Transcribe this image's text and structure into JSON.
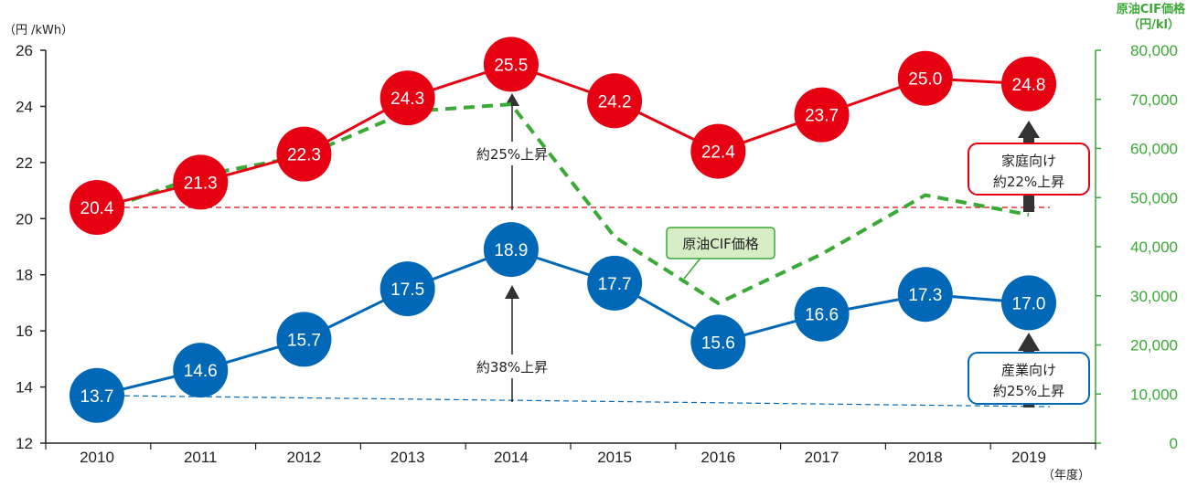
{
  "chart_data": {
    "type": "line",
    "categories": [
      "2010",
      "2011",
      "2012",
      "2013",
      "2014",
      "2015",
      "2016",
      "2017",
      "2018",
      "2019"
    ],
    "x_unit": "（年度）",
    "y_left": {
      "label": "（円 /kWh）",
      "range": [
        12,
        26
      ],
      "ticks": [
        "12",
        "14",
        "16",
        "18",
        "20",
        "22",
        "24",
        "26"
      ]
    },
    "y_right": {
      "label_line1": "原油CIF価格",
      "label_line2": "（円/kl）",
      "range": [
        0,
        80000
      ],
      "ticks": [
        "0",
        "10,000",
        "20,000",
        "30,000",
        "40,000",
        "50,000",
        "60,000",
        "70,000",
        "80,000"
      ]
    },
    "series": [
      {
        "axis": "left",
        "values": [
          20.4,
          21.3,
          22.3,
          24.3,
          25.5,
          24.2,
          22.4,
          23.7,
          25.0,
          24.8
        ],
        "labels": [
          "20.4",
          "21.3",
          "22.3",
          "24.3",
          "25.5",
          "24.2",
          "22.4",
          "23.7",
          "25.0",
          "24.8"
        ],
        "color": "#e60012"
      },
      {
        "axis": "left",
        "values": [
          13.7,
          14.6,
          15.7,
          17.5,
          18.9,
          17.7,
          15.6,
          16.6,
          17.3,
          17.0
        ],
        "labels": [
          "13.7",
          "14.6",
          "15.7",
          "17.5",
          "18.9",
          "17.7",
          "15.6",
          "16.6",
          "17.3",
          "17.0"
        ],
        "color": "#0068b7"
      },
      {
        "name": "原油CIF価格",
        "axis": "right",
        "style": "dashed",
        "values": [
          47000,
          54500,
          58500,
          67500,
          69000,
          42000,
          28500,
          38500,
          50500,
          46500
        ],
        "color": "#3aa935"
      }
    ],
    "reference_lines": [
      {
        "axis": "left",
        "value": 20.4,
        "end_value": 20.4,
        "color": "#e60012"
      },
      {
        "axis": "left",
        "value": 13.7,
        "end_value": 13.3,
        "color": "#0068b7"
      }
    ],
    "annotations": {
      "rise_2014_household": "約25%上昇",
      "rise_2014_industrial": "約38%上昇",
      "household_box_line1": "家庭向け",
      "household_box_line2": "約22%上昇",
      "industrial_box_line1": "産業向け",
      "industrial_box_line2": "約25%上昇",
      "crude_label": "原油CIF価格"
    }
  }
}
